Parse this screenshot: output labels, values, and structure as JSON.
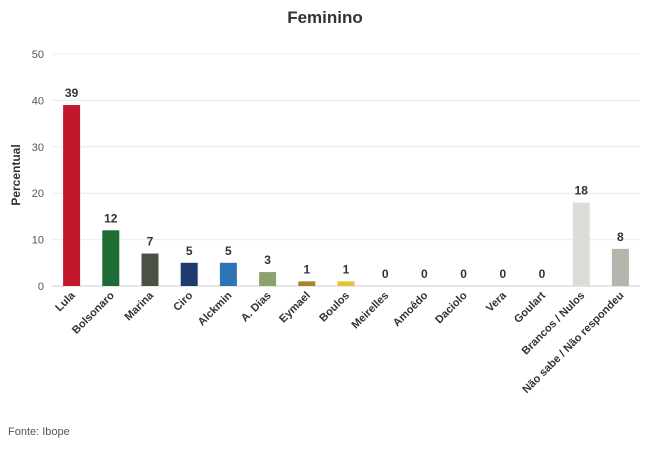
{
  "chart_data": {
    "type": "bar",
    "title": "Feminino",
    "xlabel": "",
    "ylabel": "Percentual",
    "ylim": [
      0,
      50
    ],
    "yticks": [
      0,
      10,
      20,
      30,
      40,
      50
    ],
    "grid": true,
    "categories": [
      "Lula",
      "Bolsonaro",
      "Marina",
      "Ciro",
      "Alckmin",
      "A. Dias",
      "Eymael",
      "Boulos",
      "Meirelles",
      "Amoêdo",
      "Daciolo",
      "Vera",
      "Goulart",
      "Brancos / Nulos",
      "Não sabe / Não respondeu"
    ],
    "values": [
      39,
      12,
      7,
      5,
      5,
      3,
      1,
      1,
      0,
      0,
      0,
      0,
      0,
      18,
      8
    ],
    "colors": [
      "#c3172e",
      "#1e6b34",
      "#4b5244",
      "#1f3b6e",
      "#2f74b5",
      "#8aa36b",
      "#a8842b",
      "#e8c232",
      "#cccccc",
      "#cccccc",
      "#cccccc",
      "#cccccc",
      "#cccccc",
      "#dcdcd8",
      "#b5b5ad"
    ]
  },
  "source": "Fonte: Ibope"
}
